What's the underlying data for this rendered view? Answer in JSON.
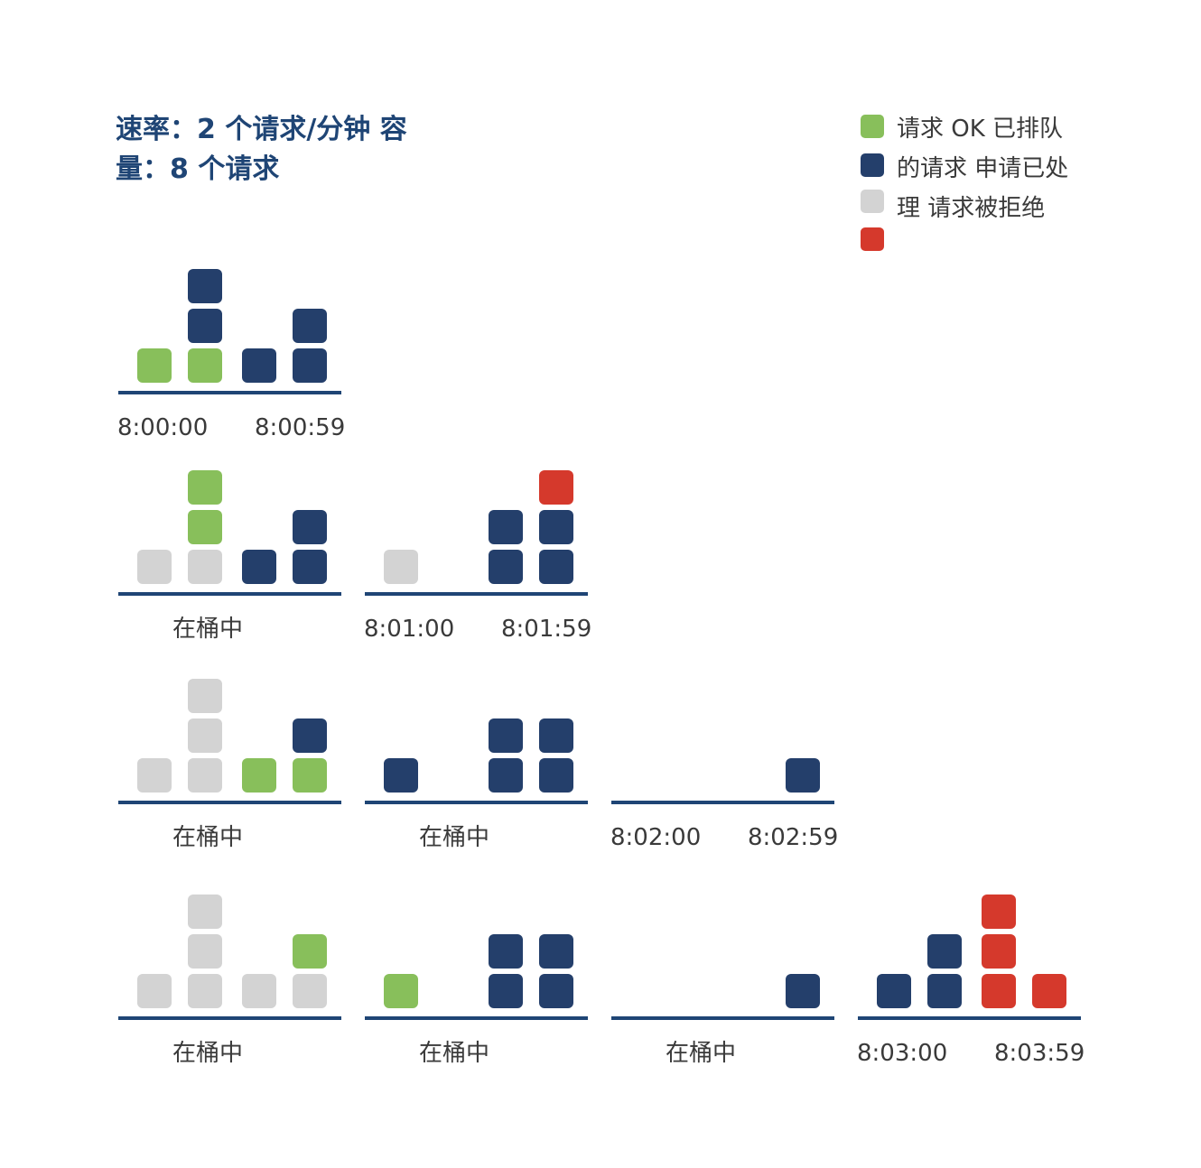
{
  "title": {
    "line1": "速率：2 个请求/分钟 容",
    "line2": "量：8 个请求"
  },
  "legend": {
    "lines": [
      "请求 OK 已排队",
      "的请求 申请已处",
      "理 请求被拒绝"
    ],
    "swatches": [
      {
        "key": "ok",
        "color": "#88bf5b"
      },
      {
        "key": "queued",
        "color": "#243f6b"
      },
      {
        "key": "processed",
        "color": "#d3d3d3"
      },
      {
        "key": "rejected",
        "color": "#d5392c"
      }
    ]
  },
  "colors": {
    "ok": "#88bf5b",
    "queued": "#243f6b",
    "processed": "#d3d3d3",
    "rejected": "#d5392c",
    "axis": "#1f4575"
  },
  "rows": [
    {
      "groups": [
        {
          "labels": [
            "8:00:00",
            "8:00:59"
          ],
          "columns": [
            [
              "ok"
            ],
            [
              "ok",
              "queued",
              "queued"
            ],
            [
              "queued"
            ],
            [
              "queued",
              "queued"
            ]
          ]
        }
      ]
    },
    {
      "groups": [
        {
          "labels": [
            "在桶中"
          ],
          "columns": [
            [
              "processed"
            ],
            [
              "processed",
              "ok",
              "ok"
            ],
            [
              "queued"
            ],
            [
              "queued",
              "queued"
            ]
          ]
        },
        {
          "labels": [
            "8:01:00",
            "8:01:59"
          ],
          "columns": [
            [
              "processed"
            ],
            [],
            [
              "queued",
              "queued"
            ],
            [
              "queued",
              "queued",
              "rejected"
            ]
          ]
        }
      ]
    },
    {
      "groups": [
        {
          "labels": [
            "在桶中"
          ],
          "columns": [
            [
              "processed"
            ],
            [
              "processed",
              "processed",
              "processed"
            ],
            [
              "ok"
            ],
            [
              "ok",
              "queued"
            ]
          ]
        },
        {
          "labels": [
            "在桶中"
          ],
          "columns": [
            [
              "queued"
            ],
            [],
            [
              "queued",
              "queued"
            ],
            [
              "queued",
              "queued"
            ]
          ]
        },
        {
          "labels": [
            "8:02:00",
            "8:02:59"
          ],
          "columns": [
            [],
            [],
            [],
            [
              "queued"
            ]
          ]
        }
      ]
    },
    {
      "groups": [
        {
          "labels": [
            "在桶中"
          ],
          "columns": [
            [
              "processed"
            ],
            [
              "processed",
              "processed",
              "processed"
            ],
            [
              "processed"
            ],
            [
              "processed",
              "ok"
            ]
          ]
        },
        {
          "labels": [
            "在桶中"
          ],
          "columns": [
            [
              "ok"
            ],
            [],
            [
              "queued",
              "queued"
            ],
            [
              "queued",
              "queued"
            ]
          ]
        },
        {
          "labels": [
            "在桶中"
          ],
          "columns": [
            [],
            [],
            [],
            [
              "queued"
            ]
          ]
        },
        {
          "labels": [
            "8:03:00",
            "8:03:59"
          ],
          "columns": [
            [
              "queued"
            ],
            [
              "queued",
              "queued"
            ],
            [
              "rejected",
              "rejected",
              "rejected"
            ],
            [
              "rejected"
            ]
          ]
        }
      ]
    }
  ]
}
